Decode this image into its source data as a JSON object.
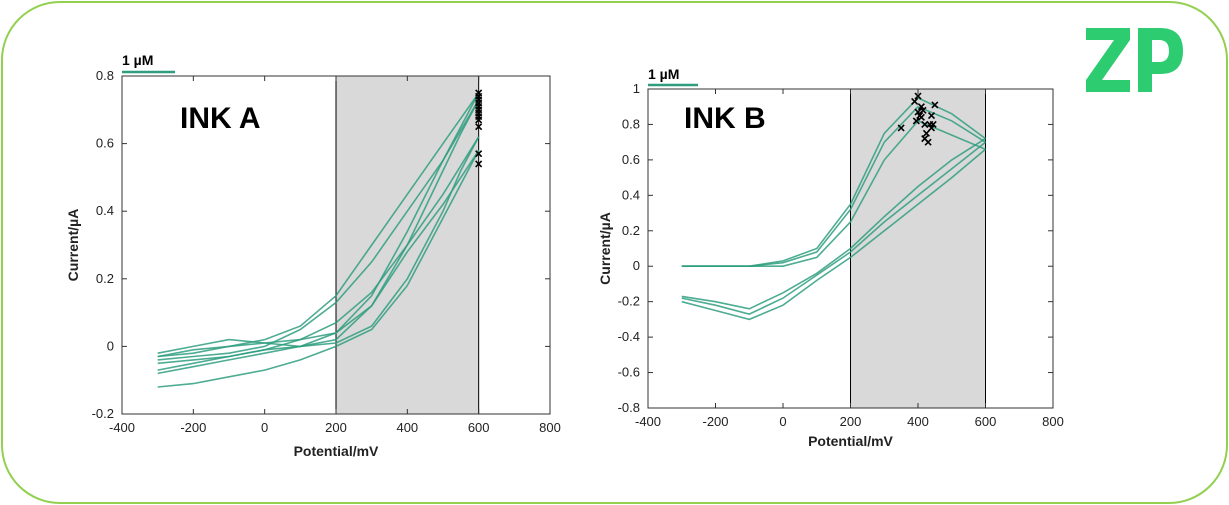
{
  "brand": {
    "logo_text": "ZP",
    "frame_color": "#92d050",
    "logo_color": "#2ecc71"
  },
  "chart_data": [
    {
      "type": "line",
      "title": "INK A",
      "xlabel": "Potential/mV",
      "ylabel": "Current/µA",
      "xlim": [
        -400,
        800
      ],
      "ylim": [
        -0.2,
        0.8
      ],
      "xticks": [
        -400,
        -200,
        0,
        200,
        400,
        600,
        800
      ],
      "yticks": [
        -0.2,
        0,
        0.2,
        0.4,
        0.6,
        0.8
      ],
      "ytick_labels": [
        "-0.2",
        "0",
        "0.2",
        "0.4",
        "0.6",
        "0.8"
      ],
      "scale_bar_label": "1 µM",
      "shaded_region": {
        "x": [
          200,
          600
        ],
        "color": "#d9d9d9"
      },
      "line_color": "#2e9e7e",
      "series": [
        {
          "x": [
            -300,
            -200,
            -100,
            0,
            100,
            200,
            300,
            400,
            500,
            550,
            600
          ],
          "y": [
            -0.05,
            -0.04,
            -0.03,
            -0.01,
            0.0,
            0.02,
            0.12,
            0.3,
            0.52,
            0.63,
            0.73
          ]
        },
        {
          "x": [
            600,
            500,
            400,
            300,
            200,
            100,
            0,
            -100,
            -200,
            -300
          ],
          "y": [
            0.73,
            0.55,
            0.4,
            0.25,
            0.13,
            0.05,
            0.0,
            -0.02,
            -0.03,
            -0.04
          ]
        },
        {
          "x": [
            -300,
            -200,
            -100,
            0,
            100,
            200,
            300,
            400,
            500,
            550,
            600
          ],
          "y": [
            -0.08,
            -0.06,
            -0.04,
            -0.02,
            0.0,
            0.01,
            0.06,
            0.2,
            0.4,
            0.52,
            0.62
          ]
        },
        {
          "x": [
            600,
            500,
            400,
            300,
            200,
            100,
            0,
            -100,
            -200,
            -300
          ],
          "y": [
            0.62,
            0.45,
            0.3,
            0.16,
            0.07,
            0.02,
            -0.01,
            -0.03,
            -0.05,
            -0.07
          ]
        },
        {
          "x": [
            -300,
            -200,
            -100,
            0,
            100,
            200,
            300,
            400,
            500,
            600
          ],
          "y": [
            -0.12,
            -0.11,
            -0.09,
            -0.07,
            -0.04,
            0.0,
            0.05,
            0.18,
            0.38,
            0.58
          ]
        },
        {
          "x": [
            600,
            500,
            400,
            300,
            200,
            100,
            0,
            -100,
            -200,
            -300
          ],
          "y": [
            0.58,
            0.42,
            0.28,
            0.12,
            0.04,
            0.0,
            0.01,
            0.02,
            0.0,
            -0.02
          ]
        },
        {
          "x": [
            -300,
            -200,
            -100,
            0,
            100,
            200,
            300,
            400,
            500,
            600
          ],
          "y": [
            -0.03,
            -0.02,
            0.0,
            0.01,
            0.02,
            0.04,
            0.15,
            0.34,
            0.55,
            0.75
          ]
        },
        {
          "x": [
            600,
            500,
            400,
            300,
            200,
            100,
            0,
            -100,
            -200,
            -300
          ],
          "y": [
            0.75,
            0.6,
            0.45,
            0.3,
            0.15,
            0.06,
            0.02,
            0.0,
            -0.01,
            -0.03
          ]
        }
      ],
      "markers": {
        "symbol": "x",
        "x": [
          600,
          600,
          600,
          600,
          600,
          600,
          600,
          600,
          600,
          600,
          600,
          600
        ],
        "y": [
          0.75,
          0.74,
          0.73,
          0.72,
          0.71,
          0.7,
          0.69,
          0.68,
          0.67,
          0.65,
          0.57,
          0.54
        ]
      }
    },
    {
      "type": "line",
      "title": "INK B",
      "xlabel": "Potential/mV",
      "ylabel": "Current/µA",
      "xlim": [
        -400,
        800
      ],
      "ylim": [
        -0.8,
        1
      ],
      "xticks": [
        -400,
        -200,
        0,
        200,
        400,
        600,
        800
      ],
      "yticks": [
        -0.8,
        -0.6,
        -0.4,
        -0.2,
        0,
        0.2,
        0.4,
        0.6,
        0.8,
        1
      ],
      "ytick_labels": [
        "-0.8",
        "-0.6",
        "-0.4",
        "-0.2",
        "0",
        "0.2",
        "0.4",
        "0.6",
        "0.8",
        "1"
      ],
      "scale_bar_label": "1 µM",
      "shaded_region": {
        "x": [
          200,
          600
        ],
        "color": "#d9d9d9"
      },
      "line_color": "#2e9e7e",
      "series": [
        {
          "x": [
            -300,
            -200,
            -100,
            0,
            100,
            200,
            300,
            400,
            500,
            600
          ],
          "y": [
            0.0,
            0.0,
            0.0,
            0.02,
            0.08,
            0.32,
            0.7,
            0.9,
            0.82,
            0.7
          ]
        },
        {
          "x": [
            600,
            500,
            400,
            300,
            200,
            100,
            0,
            -100,
            -200,
            -300
          ],
          "y": [
            0.7,
            0.55,
            0.4,
            0.25,
            0.08,
            -0.05,
            -0.18,
            -0.27,
            -0.22,
            -0.18
          ]
        },
        {
          "x": [
            -300,
            -200,
            -100,
            0,
            100,
            200,
            300,
            400,
            500,
            600
          ],
          "y": [
            0.0,
            0.0,
            0.0,
            0.0,
            0.05,
            0.25,
            0.6,
            0.82,
            0.74,
            0.66
          ]
        },
        {
          "x": [
            600,
            500,
            400,
            300,
            200,
            100,
            0,
            -100,
            -200,
            -300
          ],
          "y": [
            0.66,
            0.5,
            0.35,
            0.2,
            0.05,
            -0.08,
            -0.22,
            -0.3,
            -0.25,
            -0.2
          ]
        },
        {
          "x": [
            -300,
            -200,
            -100,
            0,
            100,
            200,
            300,
            400,
            500,
            600
          ],
          "y": [
            0.0,
            0.0,
            0.0,
            0.03,
            0.1,
            0.35,
            0.75,
            0.95,
            0.86,
            0.72
          ]
        },
        {
          "x": [
            600,
            500,
            400,
            300,
            200,
            100,
            0,
            -100,
            -200,
            -300
          ],
          "y": [
            0.72,
            0.6,
            0.45,
            0.28,
            0.1,
            -0.04,
            -0.15,
            -0.24,
            -0.2,
            -0.17
          ]
        }
      ],
      "markers": {
        "symbol": "x",
        "x": [
          350,
          390,
          400,
          405,
          410,
          415,
          420,
          420,
          425,
          430,
          435,
          440,
          440,
          445,
          450,
          410,
          400,
          395
        ],
        "y": [
          0.78,
          0.93,
          0.96,
          0.85,
          0.9,
          0.88,
          0.8,
          0.72,
          0.75,
          0.7,
          0.8,
          0.78,
          0.85,
          0.8,
          0.91,
          0.84,
          0.87,
          0.82
        ]
      }
    }
  ]
}
